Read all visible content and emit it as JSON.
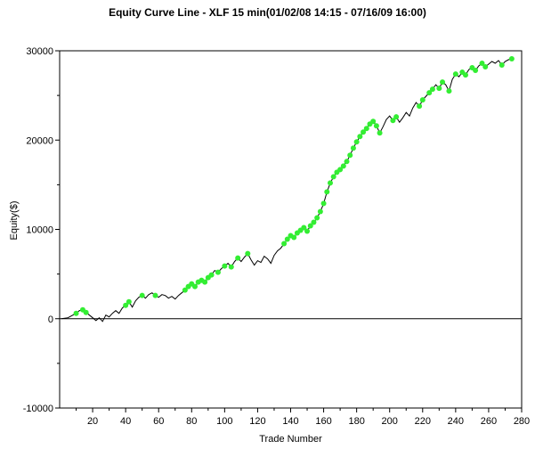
{
  "chart_data": {
    "type": "line",
    "title": "Equity Curve Line - XLF 15 min(01/02/08 14:15 - 07/16/09 16:00)",
    "xlabel": "Trade Number",
    "ylabel": "Equity($)",
    "xlim": [
      0,
      280
    ],
    "ylim": [
      -10000,
      30000
    ],
    "xticks": [
      20,
      40,
      60,
      80,
      100,
      120,
      140,
      160,
      180,
      200,
      220,
      240,
      260,
      280
    ],
    "yticks": [
      -10000,
      0,
      10000,
      20000,
      30000
    ],
    "grid": true,
    "line_color": "#000000",
    "marker_color": "#33ee33",
    "series": [
      {
        "x": [
          1,
          5,
          7,
          10,
          12,
          14,
          16,
          18,
          20,
          22,
          24,
          26,
          28,
          30,
          32,
          34,
          36,
          38,
          40,
          42,
          44,
          46,
          48,
          50,
          52,
          54,
          56,
          58,
          60,
          62,
          64,
          66,
          68,
          70,
          72,
          74,
          76,
          78,
          80,
          82,
          84,
          86,
          88,
          90,
          92,
          94,
          96,
          98,
          100,
          102,
          104,
          106,
          108,
          110,
          112,
          114,
          116,
          118,
          120,
          122,
          124,
          126,
          128,
          130,
          132,
          134,
          136,
          138,
          140,
          142,
          144,
          146,
          148,
          150,
          152,
          154,
          156,
          158,
          160,
          162,
          164,
          166,
          168,
          170,
          172,
          174,
          176,
          178,
          180,
          182,
          184,
          186,
          188,
          190,
          192,
          194,
          196,
          198,
          200,
          202,
          204,
          206,
          208,
          210,
          212,
          214,
          216,
          218,
          220,
          222,
          224,
          226,
          228,
          230,
          232,
          234,
          236,
          238,
          240,
          242,
          244,
          246,
          248,
          250,
          252,
          254,
          256,
          258,
          260,
          262,
          264,
          266,
          268,
          270,
          272,
          274
        ],
        "y": [
          0,
          100,
          300,
          600,
          900,
          1000,
          700,
          400,
          100,
          -200,
          100,
          -300,
          400,
          200,
          600,
          900,
          600,
          1200,
          1500,
          1900,
          1300,
          2000,
          2400,
          2600,
          2300,
          2700,
          2900,
          2600,
          2400,
          2700,
          2600,
          2300,
          2500,
          2200,
          2600,
          2900,
          3200,
          3600,
          3900,
          3600,
          4100,
          4300,
          4100,
          4600,
          4900,
          5400,
          5200,
          5600,
          5900,
          6200,
          5800,
          6400,
          6800,
          6400,
          6900,
          7300,
          6600,
          6000,
          6500,
          6300,
          7000,
          6700,
          6200,
          7100,
          7600,
          7900,
          8400,
          8900,
          9300,
          9100,
          9600,
          9900,
          10200,
          9800,
          10400,
          10800,
          11300,
          12000,
          12900,
          14200,
          15200,
          15900,
          16400,
          16700,
          17100,
          17600,
          18300,
          19100,
          19800,
          20400,
          20900,
          21300,
          21800,
          22100,
          21600,
          20800,
          21500,
          22300,
          22700,
          22200,
          22600,
          22000,
          22500,
          23100,
          22700,
          23600,
          24200,
          23800,
          24500,
          24900,
          25300,
          25700,
          26200,
          25800,
          26500,
          26200,
          25500,
          26800,
          27400,
          27100,
          27600,
          27300,
          27900,
          28100,
          27800,
          28300,
          28600,
          28200,
          28500,
          28800,
          28600,
          28900,
          28400,
          28800,
          29000,
          29100
        ],
        "markers_x": [
          10,
          14,
          16,
          40,
          42,
          50,
          58,
          76,
          78,
          80,
          82,
          84,
          86,
          88,
          90,
          92,
          96,
          100,
          104,
          108,
          114,
          136,
          138,
          140,
          142,
          144,
          146,
          148,
          150,
          152,
          154,
          156,
          158,
          160,
          162,
          164,
          166,
          168,
          170,
          172,
          174,
          176,
          178,
          180,
          182,
          184,
          186,
          188,
          190,
          192,
          194,
          202,
          204,
          218,
          220,
          224,
          226,
          230,
          232,
          236,
          240,
          244,
          246,
          250,
          252,
          256,
          258,
          268,
          274
        ]
      }
    ]
  }
}
